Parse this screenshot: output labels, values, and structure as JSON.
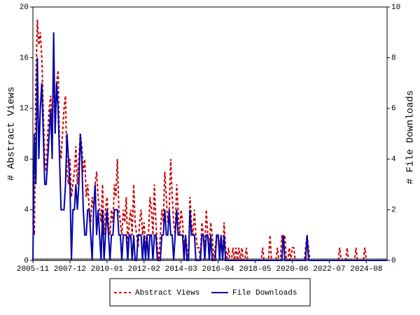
{
  "chart_data": {
    "type": "line",
    "categories": [
      "2005-11",
      null,
      null,
      null,
      null,
      null,
      null,
      null,
      null,
      null,
      null,
      null,
      null,
      null,
      null,
      null,
      null,
      null,
      null,
      null,
      null,
      null,
      null,
      null,
      null,
      "2007-12",
      null,
      null,
      null,
      null,
      null,
      null,
      null,
      null,
      null,
      null,
      null,
      null,
      null,
      null,
      null,
      null,
      null,
      null,
      null,
      null,
      null,
      null,
      null,
      null,
      "2010-01",
      null,
      null,
      null,
      null,
      null,
      null,
      null,
      null,
      null,
      null,
      null,
      null,
      null,
      null,
      null,
      null,
      null,
      null,
      null,
      null,
      null,
      null,
      null,
      null,
      "2012-02",
      null,
      null,
      null,
      null,
      null,
      null,
      null,
      null,
      null,
      null,
      null,
      null,
      null,
      null,
      null,
      null,
      null,
      null,
      null,
      null,
      null,
      null,
      null,
      null,
      "2014-03",
      null,
      null,
      null,
      null,
      null,
      null,
      null,
      null,
      null,
      null,
      null,
      null,
      null,
      null,
      null,
      null,
      null,
      null,
      null,
      null,
      null,
      null,
      null,
      null,
      "2016-04",
      null,
      null,
      null,
      null,
      null,
      null,
      null,
      null,
      null,
      null,
      null,
      null,
      null,
      null,
      null,
      null,
      null,
      null,
      null,
      null,
      null,
      null,
      null,
      null,
      "2018-05",
      null,
      null,
      null,
      null,
      null,
      null,
      null,
      null,
      null,
      null,
      null,
      null,
      null,
      null,
      null,
      null,
      null,
      null,
      null,
      null,
      null,
      null,
      null,
      null,
      "2020-06",
      null,
      null,
      null,
      null,
      null,
      null,
      null,
      null,
      null,
      null,
      null,
      null,
      null,
      null,
      null,
      null,
      null,
      null,
      null,
      null,
      null,
      null,
      null,
      null,
      "2022-07",
      null,
      null,
      null,
      null,
      null,
      null,
      null,
      null,
      null,
      null,
      null,
      null,
      null,
      null,
      null,
      null,
      null,
      null,
      null,
      null,
      null,
      null,
      null,
      null,
      "2024-08",
      null,
      null,
      null,
      null,
      null,
      null,
      null,
      null,
      null,
      null,
      null,
      null,
      null,
      null
    ],
    "y_label": "# Abstract Views",
    "y2_label": "# File Downloads",
    "ylim": [
      0,
      20
    ],
    "yticks": [
      0,
      4,
      8,
      12,
      16,
      20
    ],
    "y2lim": [
      0,
      10
    ],
    "y2ticks": [
      0,
      2,
      4,
      6,
      8,
      10
    ],
    "legend": "bottom",
    "series": [
      {
        "name": "Abstract Views",
        "color": "#cc0000",
        "dash": true,
        "values": [
          3,
          2,
          14,
          19,
          17,
          18,
          16,
          12,
          8,
          7,
          10,
          12,
          13,
          11,
          15,
          10,
          14,
          15,
          9,
          8,
          10,
          12,
          13,
          7,
          6,
          8,
          5,
          6,
          7,
          9,
          6,
          8,
          10,
          9,
          7,
          8,
          5,
          6,
          4,
          3,
          5,
          4,
          6,
          7,
          5,
          4,
          3,
          6,
          2,
          4,
          5,
          3,
          2,
          4,
          3,
          6,
          5,
          8,
          4,
          3,
          2,
          4,
          3,
          5,
          1,
          3,
          4,
          2,
          6,
          3,
          2,
          1,
          3,
          4,
          2,
          3,
          1,
          2,
          2,
          5,
          4,
          2,
          6,
          3,
          1,
          0,
          2,
          4,
          3,
          7,
          5,
          3,
          4,
          8,
          5,
          3,
          2,
          6,
          4,
          2,
          4,
          3,
          1,
          2,
          1,
          0,
          5,
          3,
          2,
          4,
          2,
          1,
          1,
          0,
          3,
          2,
          1,
          4,
          2,
          1,
          3,
          2,
          0,
          1,
          2,
          2,
          1,
          2,
          0,
          3,
          1,
          0,
          1,
          0,
          0,
          1,
          0,
          1,
          0,
          1,
          0,
          1,
          0,
          0,
          1,
          0,
          0,
          0,
          0,
          0,
          0,
          0,
          0,
          0,
          0,
          1,
          0,
          0,
          0,
          0,
          2,
          0,
          0,
          0,
          0,
          1,
          0,
          0,
          2,
          1,
          2,
          0,
          0,
          1,
          0,
          1,
          1,
          0,
          0,
          0,
          0,
          0,
          0,
          0,
          1,
          2,
          1,
          0,
          0,
          0,
          0,
          0,
          0,
          0,
          0,
          0,
          0,
          0,
          0,
          0,
          0,
          0,
          0,
          0,
          0,
          0,
          0,
          1,
          0,
          0,
          0,
          0,
          1,
          0,
          0,
          0,
          0,
          0,
          1,
          0,
          0,
          0,
          0,
          0,
          1,
          0,
          0,
          0,
          0,
          0,
          0,
          0,
          0,
          0,
          0,
          0,
          0,
          0,
          0,
          0
        ]
      },
      {
        "name": "File Downloads",
        "color": "#0000aa",
        "dash": false,
        "axis": "y2",
        "values": [
          0,
          5,
          3,
          8,
          4,
          6,
          7,
          5,
          3,
          3,
          4,
          5,
          6,
          4,
          9,
          5,
          7,
          6,
          4,
          2,
          2,
          2,
          3,
          5,
          4,
          3,
          0,
          2,
          2,
          3,
          2,
          3,
          5,
          4,
          2,
          1,
          1,
          2,
          2,
          1,
          0,
          2,
          3,
          1,
          2,
          1,
          0,
          2,
          0,
          1,
          2,
          1,
          0,
          1,
          1,
          2,
          2,
          2,
          1,
          1,
          0,
          1,
          1,
          1,
          0,
          1,
          1,
          0,
          1,
          0,
          0,
          1,
          1,
          1,
          0,
          1,
          0,
          1,
          0,
          1,
          1,
          0,
          1,
          1,
          0,
          0,
          0,
          1,
          1,
          2,
          1,
          1,
          2,
          1,
          1,
          0,
          1,
          2,
          1,
          1,
          1,
          1,
          0,
          1,
          0,
          0,
          2,
          1,
          1,
          1,
          0,
          0,
          0,
          0,
          1,
          1,
          0,
          1,
          1,
          0,
          1,
          0,
          0,
          0,
          1,
          1,
          0,
          1,
          0,
          1,
          0,
          0,
          0,
          0,
          0,
          0,
          0,
          0,
          0,
          0,
          0,
          0,
          0,
          0,
          0,
          0,
          0,
          0,
          0,
          0,
          0,
          0,
          0,
          0,
          0,
          0,
          0,
          0,
          0,
          0,
          0,
          0,
          0,
          0,
          0,
          0,
          0,
          0,
          0,
          1,
          0,
          0,
          0,
          0,
          0,
          0,
          0,
          0,
          0,
          0,
          0,
          0,
          0,
          0,
          0,
          1,
          0,
          0,
          0,
          0,
          0,
          0,
          0,
          0,
          0,
          0,
          0,
          0,
          0,
          0,
          0,
          0,
          0,
          0,
          0,
          0,
          0,
          0,
          0,
          0,
          0,
          0,
          0,
          0,
          0,
          0,
          0,
          0,
          0,
          0,
          0,
          0,
          0,
          0,
          0,
          0,
          0,
          0,
          0,
          0,
          0,
          0,
          0,
          0,
          0,
          0,
          0,
          0,
          0,
          0
        ]
      }
    ]
  }
}
